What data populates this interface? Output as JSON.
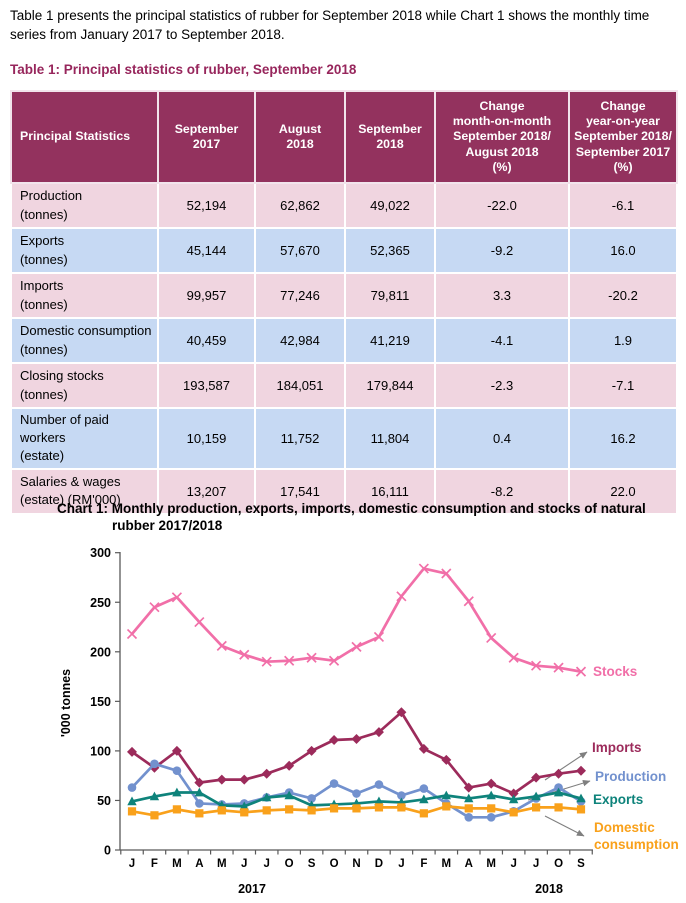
{
  "intro": "Table 1 presents the principal statistics of rubber for September 2018 while Chart 1 shows the monthly time series from January 2017 to September 2018.",
  "table": {
    "title": "Table 1: Principal statistics of rubber, September 2018",
    "headers": [
      "Principal Statistics",
      "September\n2017",
      "August\n2018",
      "September\n2018",
      "Change\nmonth-on-month\nSeptember 2018/\nAugust 2018\n(%)",
      "Change\nyear-on-year\nSeptember 2018/\nSeptember 2017\n(%)"
    ],
    "rows": [
      {
        "label": "Production\n(tonnes)",
        "values": [
          "52,194",
          "62,862",
          "49,022",
          "-22.0",
          "-6.1"
        ]
      },
      {
        "label": "Exports\n(tonnes)",
        "values": [
          "45,144",
          "57,670",
          "52,365",
          "-9.2",
          "16.0"
        ]
      },
      {
        "label": "Imports\n(tonnes)",
        "values": [
          "99,957",
          "77,246",
          "79,811",
          "3.3",
          "-20.2"
        ]
      },
      {
        "label": "Domestic consumption\n(tonnes)",
        "values": [
          "40,459",
          "42,984",
          "41,219",
          "-4.1",
          "1.9"
        ]
      },
      {
        "label": "Closing stocks\n(tonnes)",
        "values": [
          "193,587",
          "184,051",
          "179,844",
          "-2.3",
          "-7.1"
        ]
      },
      {
        "label": "Number of paid workers\n(estate)",
        "values": [
          "10,159",
          "11,752",
          "11,804",
          "0.4",
          "16.2"
        ]
      },
      {
        "label": "Salaries & wages\n(estate) (RM'000)",
        "values": [
          "13,207",
          "17,541",
          "16,111",
          "-8.2",
          "22.0"
        ]
      }
    ]
  },
  "chart": {
    "title_line1": "Chart 1: Monthly production, exports, imports, domestic consumption and stocks of natural",
    "title_line2": "rubber 2017/2018",
    "ylabel": "'000 tonnes",
    "year_labels": [
      "2017",
      "2018"
    ]
  },
  "chart_data": {
    "type": "line",
    "x": [
      "J",
      "F",
      "M",
      "A",
      "M",
      "J",
      "J",
      "O",
      "S",
      "O",
      "N",
      "D",
      "J",
      "F",
      "M",
      "A",
      "M",
      "J",
      "J",
      "O",
      "S"
    ],
    "x_years": [
      "2017",
      "2018"
    ],
    "ylim": [
      0,
      300
    ],
    "yticks": [
      0,
      50,
      100,
      150,
      200,
      250,
      300
    ],
    "grid": false,
    "legend_position": "right",
    "series": [
      {
        "name": "Stocks",
        "color": "#F16FA8",
        "marker": "x",
        "values": [
          218,
          245,
          255,
          230,
          206,
          197,
          190,
          191,
          194,
          191,
          205,
          215,
          256,
          284,
          279,
          251,
          214,
          194,
          186,
          184,
          180
        ]
      },
      {
        "name": "Imports",
        "color": "#9C2B5B",
        "marker": "diamond",
        "values": [
          99,
          83,
          100,
          68,
          71,
          71,
          77,
          85,
          100,
          111,
          112,
          119,
          139,
          102,
          91,
          63,
          67,
          57,
          73,
          77,
          80
        ]
      },
      {
        "name": "Production",
        "color": "#7291CE",
        "marker": "circle",
        "values": [
          63,
          87,
          80,
          47,
          46,
          47,
          53,
          58,
          52,
          67,
          57,
          66,
          55,
          62,
          47,
          33,
          33,
          39,
          52,
          63,
          49
        ]
      },
      {
        "name": "Exports",
        "color": "#0E837B",
        "marker": "triangle",
        "values": [
          49,
          54,
          58,
          58,
          45,
          44,
          53,
          55,
          45,
          46,
          47,
          49,
          48,
          51,
          55,
          52,
          55,
          51,
          54,
          58,
          52
        ]
      },
      {
        "name": "Domestic\nconsumption",
        "color": "#F9A11B",
        "marker": "square",
        "values": [
          39,
          35,
          41,
          37,
          40,
          38,
          40,
          41,
          40,
          42,
          42,
          43,
          43,
          37,
          44,
          42,
          42,
          38,
          43,
          43,
          41
        ]
      }
    ],
    "annotation_arrows_color": "#7F7F7F",
    "axis_color": "#595959"
  }
}
